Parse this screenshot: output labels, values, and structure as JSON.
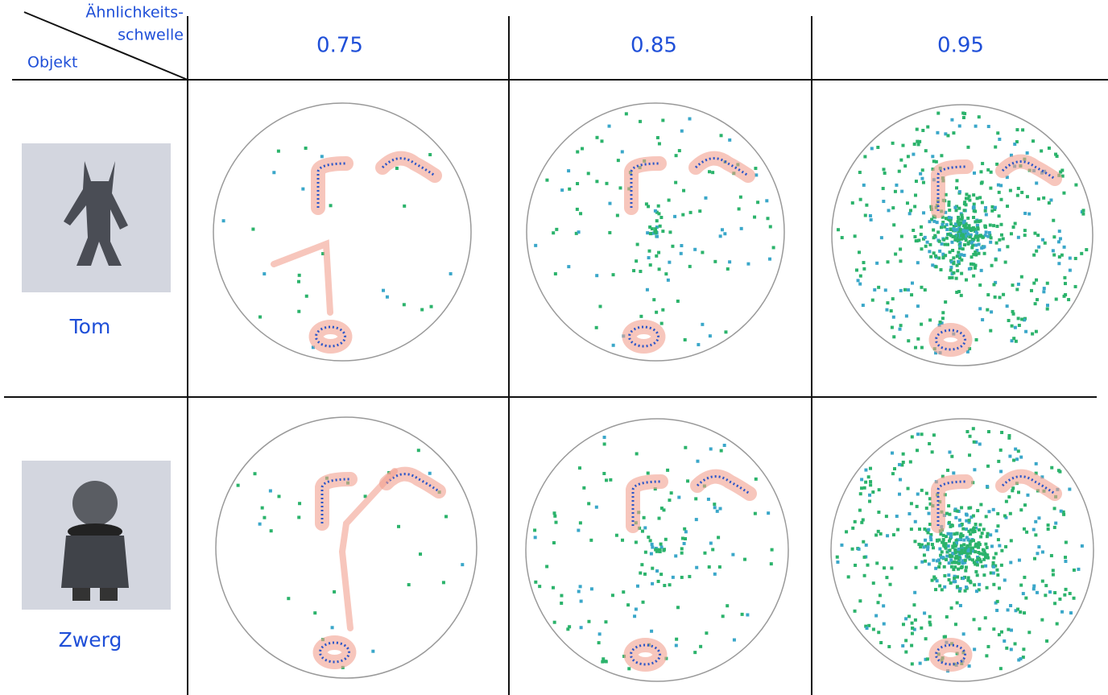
{
  "header": {
    "corner": {
      "threshold_label": [
        "Ähnlichkeits-",
        "schwelle"
      ],
      "object_label": "Objekt"
    },
    "thresholds": [
      "0.75",
      "0.85",
      "0.95"
    ]
  },
  "rows": [
    {
      "object": "Tom"
    },
    {
      "object": "Zwerg"
    }
  ]
}
